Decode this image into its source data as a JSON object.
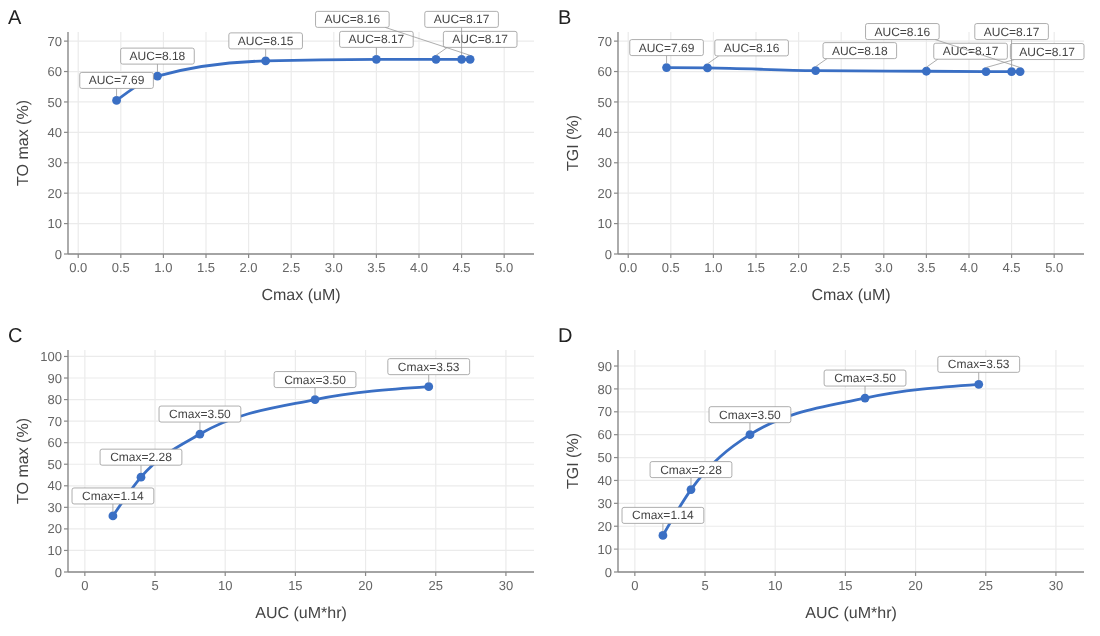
{
  "chart_data": [
    {
      "type": "line",
      "title": "A",
      "xlabel": "Cmax (uM)",
      "ylabel": "TO max (%)",
      "x": [
        0.45,
        0.93,
        2.2,
        3.5,
        4.2,
        4.5,
        4.6
      ],
      "values": [
        50.5,
        58.5,
        63.5,
        64,
        64,
        64,
        64
      ],
      "color": "#3a6fc4",
      "xlim": [
        -0.12,
        5.35
      ],
      "xticks": [
        {
          "value": 0,
          "label": "0.0"
        },
        0.5,
        {
          "value": 1,
          "label": "1.0"
        },
        1.5,
        {
          "value": 2,
          "label": "2.0"
        },
        2.5,
        {
          "value": 3,
          "label": "3.0"
        },
        3.5,
        {
          "value": 4,
          "label": "4.0"
        },
        4.5,
        {
          "value": 5,
          "label": "5.0"
        }
      ],
      "ylim": [
        0,
        73
      ],
      "yticks": [
        0,
        10,
        20,
        30,
        40,
        50,
        60,
        70
      ],
      "grid": true,
      "marker": "circle",
      "line_style": "solid",
      "annotations": [
        {
          "text": "AUC=7.69",
          "x": 0.45,
          "y": 50.5
        },
        {
          "text": "AUC=8.18",
          "x": 0.93,
          "y": 58.5
        },
        {
          "text": "AUC=8.15",
          "x": 2.2,
          "y": 63.5
        },
        {
          "text": "AUC=8.17",
          "x": 3.5,
          "y": 64
        },
        {
          "text": "AUC=8.17",
          "x": 4.2,
          "y": 64
        },
        {
          "text": "AUC=8.17",
          "x": 4.5,
          "y": 64
        },
        {
          "text": "AUC=8.16",
          "x": 4.6,
          "y": 64
        }
      ]
    },
    {
      "type": "line",
      "title": "B",
      "xlabel": "Cmax (uM)",
      "ylabel": "TGI (%)",
      "x": [
        0.45,
        0.93,
        2.2,
        3.5,
        4.2,
        4.5,
        4.6
      ],
      "values": [
        61.3,
        61.2,
        60.3,
        60.1,
        60,
        60,
        60
      ],
      "color": "#3a6fc4",
      "xlim": [
        -0.12,
        5.35
      ],
      "xticks": [
        {
          "value": 0,
          "label": "0.0"
        },
        0.5,
        {
          "value": 1,
          "label": "1.0"
        },
        1.5,
        {
          "value": 2,
          "label": "2.0"
        },
        2.5,
        {
          "value": 3,
          "label": "3.0"
        },
        3.5,
        {
          "value": 4,
          "label": "4.0"
        },
        4.5,
        {
          "value": 5,
          "label": "5.0"
        }
      ],
      "ylim": [
        0,
        73
      ],
      "yticks": [
        0,
        10,
        20,
        30,
        40,
        50,
        60,
        70
      ],
      "grid": true,
      "marker": "circle",
      "line_style": "solid",
      "annotations": [
        {
          "text": "AUC=7.69",
          "x": 0.45,
          "y": 61.3
        },
        {
          "text": "AUC=8.16",
          "x": 0.93,
          "y": 61.2
        },
        {
          "text": "AUC=8.18",
          "x": 2.2,
          "y": 60.3
        },
        {
          "text": "AUC=8.17",
          "x": 3.5,
          "y": 60.1
        },
        {
          "text": "AUC=8.17",
          "x": 4.2,
          "y": 60
        },
        {
          "text": "AUC=8.17",
          "x": 4.5,
          "y": 60
        },
        {
          "text": "AUC=8.16",
          "x": 4.6,
          "y": 60
        }
      ]
    },
    {
      "type": "line",
      "title": "C",
      "xlabel": "AUC (uM*hr)",
      "ylabel": "TO max (%)",
      "x": [
        2,
        4,
        8.2,
        16.4,
        24.5
      ],
      "values": [
        26,
        44,
        64,
        80,
        86
      ],
      "color": "#3a6fc4",
      "xlim": [
        -1.2,
        32
      ],
      "xticks": [
        0,
        5,
        10,
        15,
        20,
        25,
        30
      ],
      "ylim": [
        0,
        103
      ],
      "yticks": [
        0,
        10,
        20,
        30,
        40,
        50,
        60,
        70,
        80,
        90,
        100
      ],
      "grid": true,
      "marker": "circle",
      "line_style": "solid",
      "annotations": [
        {
          "text": "Cmax=1.14",
          "x": 2,
          "y": 26
        },
        {
          "text": "Cmax=2.28",
          "x": 4,
          "y": 44
        },
        {
          "text": "Cmax=3.50",
          "x": 8.2,
          "y": 64
        },
        {
          "text": "Cmax=3.50",
          "x": 16.4,
          "y": 80
        },
        {
          "text": "Cmax=3.53",
          "x": 24.5,
          "y": 86
        }
      ]
    },
    {
      "type": "line",
      "title": "D",
      "xlabel": "AUC (uM*hr)",
      "ylabel": "TGI (%)",
      "x": [
        2,
        4,
        8.2,
        16.4,
        24.5
      ],
      "values": [
        16,
        36,
        60,
        76,
        82
      ],
      "color": "#3a6fc4",
      "xlim": [
        -1.2,
        32
      ],
      "xticks": [
        0,
        5,
        10,
        15,
        20,
        25,
        30
      ],
      "ylim": [
        0,
        97
      ],
      "yticks": [
        0,
        10,
        20,
        30,
        40,
        50,
        60,
        70,
        80,
        90
      ],
      "grid": true,
      "marker": "circle",
      "line_style": "solid",
      "annotations": [
        {
          "text": "Cmax=1.14",
          "x": 2,
          "y": 16
        },
        {
          "text": "Cmax=2.28",
          "x": 4,
          "y": 36
        },
        {
          "text": "Cmax=3.50",
          "x": 8.2,
          "y": 60
        },
        {
          "text": "Cmax=3.50",
          "x": 16.4,
          "y": 76
        },
        {
          "text": "Cmax=3.53",
          "x": 24.5,
          "y": 82
        }
      ]
    }
  ]
}
